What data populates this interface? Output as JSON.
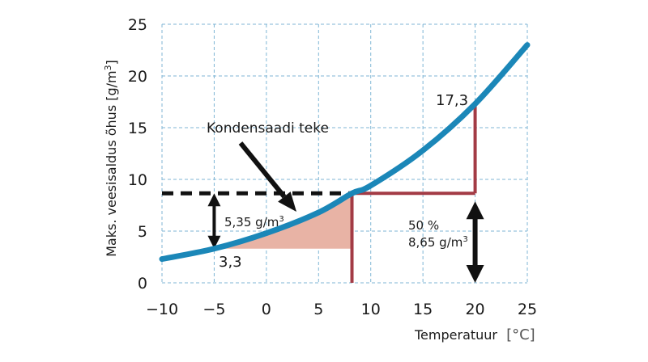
{
  "chart_data": {
    "type": "line",
    "xlabel": "Temperatuur",
    "xunit": "[°C]",
    "ylabel_main": "Maks. veesisaldus õhus [g/m",
    "ylabel_sup": "3",
    "ylabel_end": "]",
    "xlim": [
      -10,
      25
    ],
    "ylim": [
      0,
      25
    ],
    "xticks": [
      -10,
      -5,
      0,
      5,
      10,
      15,
      20,
      25
    ],
    "yticks": [
      0,
      5,
      10,
      15,
      20,
      25
    ],
    "xtick_labels": [
      "−10",
      "−5",
      "0",
      "5",
      "10",
      "15",
      "20",
      "25"
    ],
    "ytick_labels": [
      "0",
      "5",
      "10",
      "15",
      "20",
      "25"
    ],
    "grid": true,
    "series": [
      {
        "name": "Maks. veesisaldus",
        "color": "#1b87b8",
        "x": [
          -10,
          -5,
          0,
          5,
          8.2,
          10,
          15,
          20,
          25
        ],
        "y": [
          2.3,
          3.3,
          4.8,
          6.8,
          8.65,
          9.4,
          12.8,
          17.3,
          23.0
        ]
      }
    ],
    "dew_point_x": 8.2,
    "dew_point_y": 8.65,
    "room_temp_x": 20,
    "saturation_y": 17.3,
    "cold_x": -5,
    "cold_y": 3.3,
    "annotations": {
      "condensation_label": "Kondensaadi teke",
      "diff_label": "5,35 g/m",
      "diff_sup": "3",
      "humidity_pct": "50 %",
      "humidity_val": "8,65 g/m",
      "humidity_sup": "3",
      "saturation_label": "17,3",
      "cold_label": "3,3"
    },
    "colors": {
      "curve": "#1b87b8",
      "grid": "#7fb6d6",
      "fill": "#e8b3a5",
      "red": "#a33b45",
      "dash": "#111111",
      "text": "#1a1a1a"
    }
  }
}
